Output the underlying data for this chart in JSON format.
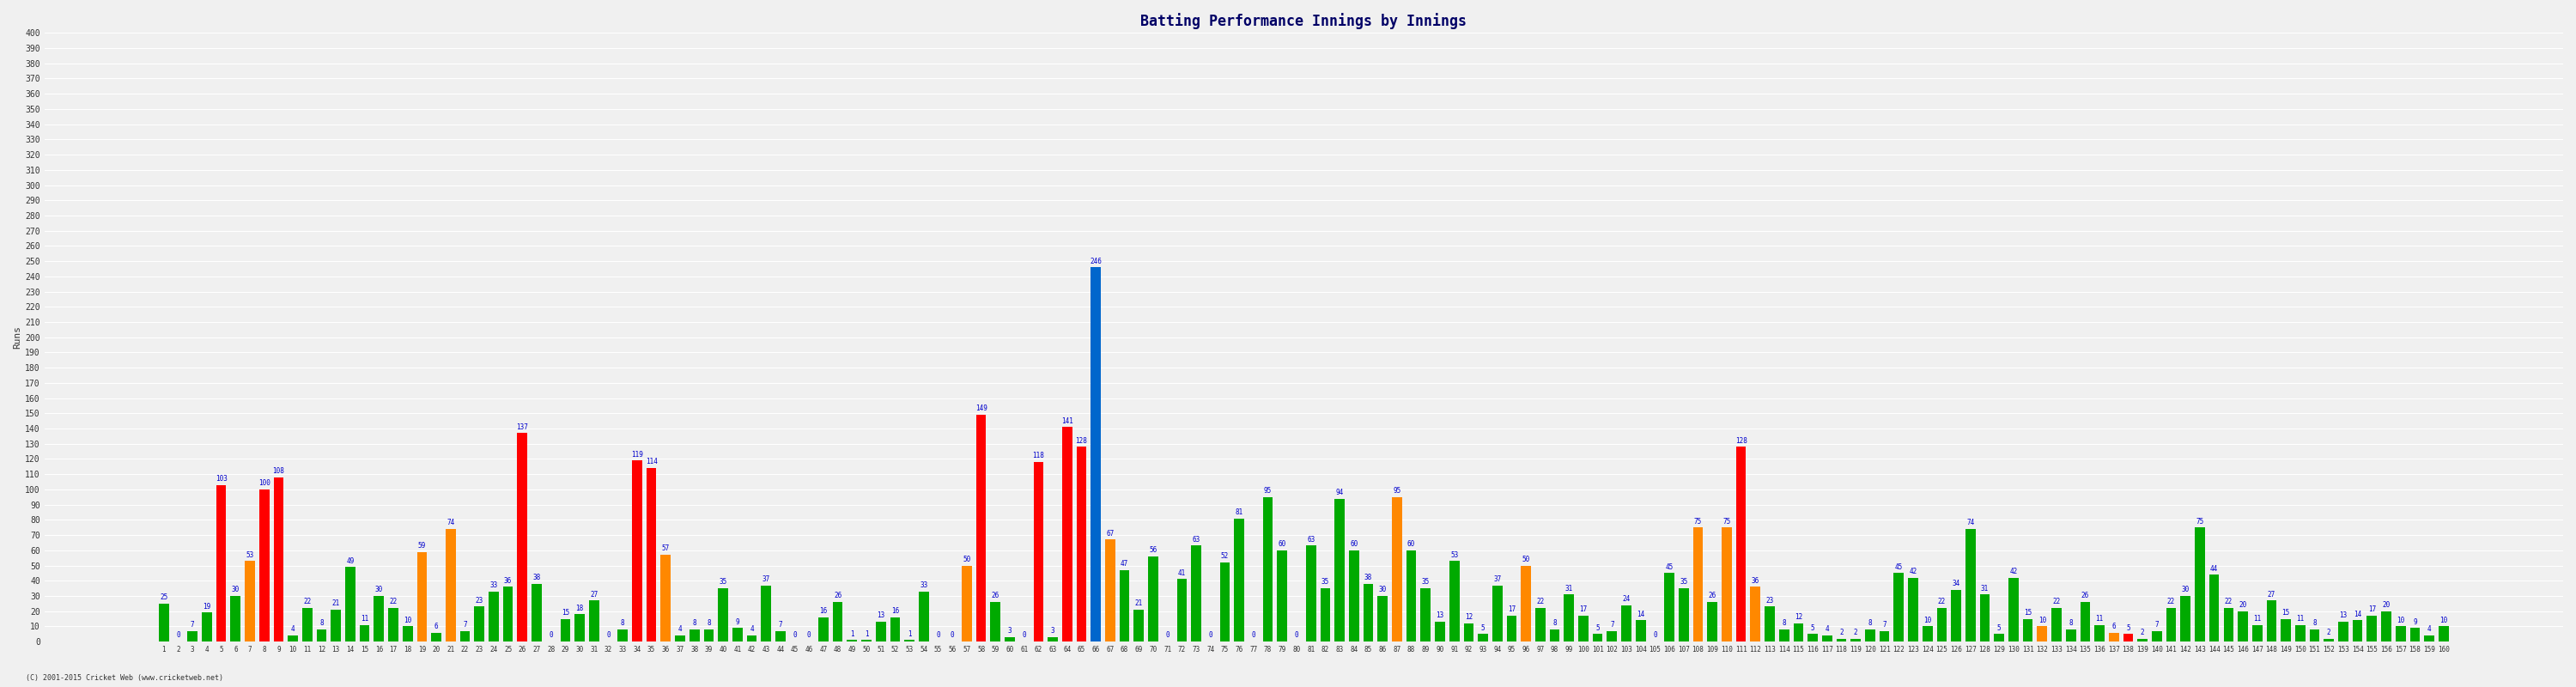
{
  "innings": [
    1,
    2,
    3,
    4,
    5,
    6,
    7,
    8,
    9,
    10,
    11,
    12,
    13,
    14,
    15,
    16,
    17,
    18,
    19,
    20,
    21,
    22,
    23,
    24,
    25,
    26,
    27,
    28,
    29,
    30,
    31,
    32,
    33,
    34,
    35,
    36,
    37,
    38,
    39,
    40,
    41,
    42,
    43,
    44,
    45,
    46,
    47,
    48,
    49,
    50,
    51,
    52,
    53,
    54,
    55,
    56,
    57,
    58,
    59,
    60,
    61,
    62,
    63,
    64,
    65,
    66,
    67,
    68,
    69,
    70,
    71,
    72,
    73,
    74,
    75,
    76,
    77,
    78,
    79,
    80,
    81,
    82,
    83,
    84,
    85,
    86,
    87,
    88,
    89,
    90,
    91,
    92,
    93,
    94,
    95,
    96,
    97,
    98,
    99,
    100,
    101,
    102,
    103,
    104,
    105,
    106,
    107,
    108,
    109,
    110,
    111,
    112,
    113,
    114,
    115,
    116,
    117,
    118,
    119,
    120,
    121,
    122,
    123,
    124,
    125,
    126,
    127,
    128,
    129,
    130,
    131,
    132,
    133,
    134,
    135,
    136,
    137,
    138,
    139,
    140,
    141,
    142,
    143,
    144,
    145,
    146,
    147,
    148,
    149,
    150,
    151,
    152,
    153,
    154,
    155,
    156,
    157,
    158,
    159,
    160
  ],
  "scores": [
    25,
    0,
    7,
    19,
    103,
    30,
    53,
    100,
    108,
    4,
    22,
    8,
    21,
    49,
    11,
    30,
    22,
    10,
    59,
    6,
    74,
    7,
    23,
    33,
    36,
    137,
    38,
    0,
    15,
    18,
    27,
    0,
    8,
    119,
    114,
    57,
    4,
    8,
    8,
    35,
    9,
    4,
    37,
    7,
    0,
    0,
    16,
    26,
    1,
    1,
    13,
    16,
    1,
    33,
    0,
    0,
    50,
    149,
    26,
    3,
    0,
    118,
    3,
    141,
    128,
    246,
    67,
    47,
    21,
    56,
    0,
    41,
    63,
    0,
    52,
    81,
    0,
    95,
    60,
    0,
    63,
    35,
    94,
    60,
    38,
    30,
    95,
    60,
    35,
    13,
    53,
    12,
    5,
    37,
    17,
    50,
    22,
    8,
    31,
    17,
    5,
    7,
    24,
    14,
    0,
    45,
    35,
    75,
    26,
    75,
    128,
    36,
    23,
    8,
    12,
    5,
    4,
    2,
    2,
    8,
    7,
    45,
    42,
    10,
    22,
    34,
    74,
    31,
    5,
    42,
    15,
    10,
    22,
    8,
    26,
    11,
    6,
    5,
    2,
    7,
    22,
    30,
    75,
    44,
    22,
    20,
    11,
    27,
    15,
    11,
    8,
    2,
    13,
    14,
    17,
    20,
    10,
    9,
    4,
    10
  ],
  "colors": [
    "#00aa00",
    "#00aa00",
    "#00aa00",
    "#00aa00",
    "#ff0000",
    "#00aa00",
    "#ff8800",
    "#ff0000",
    "#ff0000",
    "#00aa00",
    "#00aa00",
    "#00aa00",
    "#00aa00",
    "#00aa00",
    "#00aa00",
    "#00aa00",
    "#00aa00",
    "#00aa00",
    "#ff8800",
    "#00aa00",
    "#ff8800",
    "#00aa00",
    "#00aa00",
    "#00aa00",
    "#00aa00",
    "#ff0000",
    "#00aa00",
    "#00aa00",
    "#00aa00",
    "#00aa00",
    "#00aa00",
    "#00aa00",
    "#00aa00",
    "#ff0000",
    "#ff0000",
    "#ff8800",
    "#00aa00",
    "#00aa00",
    "#00aa00",
    "#00aa00",
    "#00aa00",
    "#00aa00",
    "#00aa00",
    "#00aa00",
    "#00aa00",
    "#00aa00",
    "#00aa00",
    "#00aa00",
    "#00aa00",
    "#00aa00",
    "#00aa00",
    "#00aa00",
    "#00aa00",
    "#00aa00",
    "#00aa00",
    "#00aa00",
    "#ff8800",
    "#ff0000",
    "#00aa00",
    "#00aa00",
    "#00aa00",
    "#ff0000",
    "#00aa00",
    "#ff0000",
    "#ff0000",
    "#0066cc",
    "#ff8800",
    "#00aa00",
    "#00aa00",
    "#00aa00",
    "#00aa00",
    "#00aa00",
    "#00aa00",
    "#00aa00",
    "#00aa00",
    "#00aa00",
    "#00aa00",
    "#00aa00",
    "#00aa00",
    "#00aa00",
    "#00aa00",
    "#00aa00",
    "#00aa00",
    "#00aa00",
    "#00aa00",
    "#00aa00",
    "#ff8800",
    "#00aa00",
    "#00aa00",
    "#00aa00",
    "#00aa00",
    "#00aa00",
    "#00aa00",
    "#00aa00",
    "#00aa00",
    "#ff8800",
    "#00aa00",
    "#00aa00",
    "#00aa00",
    "#00aa00",
    "#00aa00",
    "#00aa00",
    "#00aa00",
    "#00aa00",
    "#00aa00",
    "#00aa00",
    "#00aa00",
    "#ff8800",
    "#00aa00",
    "#ff8800",
    "#ff0000",
    "#ff8800",
    "#00aa00",
    "#00aa00",
    "#00aa00",
    "#00aa00",
    "#00aa00",
    "#00aa00",
    "#00aa00",
    "#00aa00",
    "#00aa00",
    "#00aa00",
    "#00aa00",
    "#00aa00",
    "#00aa00",
    "#00aa00",
    "#00aa00",
    "#00aa00",
    "#00aa00",
    "#00aa00",
    "#00aa00",
    "#ff8800",
    "#00aa00",
    "#00aa00",
    "#00aa00",
    "#00aa00",
    "#ff8800",
    "#ff0000",
    "#00aa00",
    "#00aa00",
    "#00aa00",
    "#00aa00",
    "#00aa00",
    "#00aa00",
    "#00aa00",
    "#00aa00",
    "#00aa00",
    "#00aa00",
    "#00aa00",
    "#00aa00",
    "#00aa00",
    "#00aa00",
    "#00aa00",
    "#00aa00",
    "#00aa00",
    "#00aa00",
    "#00aa00",
    "#00aa00",
    "#00aa00",
    "#00aa00",
    "#00aa00",
    "#00aa00",
    "#00aa00",
    "#00aa00"
  ],
  "title": "Batting Performance Innings by Innings",
  "ylabel": "Runs",
  "ylim": [
    0,
    400
  ],
  "yticks": [
    0,
    10,
    20,
    30,
    40,
    50,
    60,
    70,
    80,
    90,
    100,
    110,
    120,
    130,
    140,
    150,
    160,
    170,
    180,
    190,
    200,
    210,
    220,
    230,
    240,
    250,
    260,
    270,
    280,
    290,
    300,
    310,
    320,
    330,
    340,
    350,
    360,
    370,
    380,
    390,
    400
  ],
  "bg_color": "#f0f0f0",
  "grid_color": "#ffffff",
  "bar_width": 0.7,
  "title_color": "#000066",
  "label_color": "#0000cc",
  "footer": "(C) 2001-2015 Cricket Web (www.cricketweb.net)"
}
